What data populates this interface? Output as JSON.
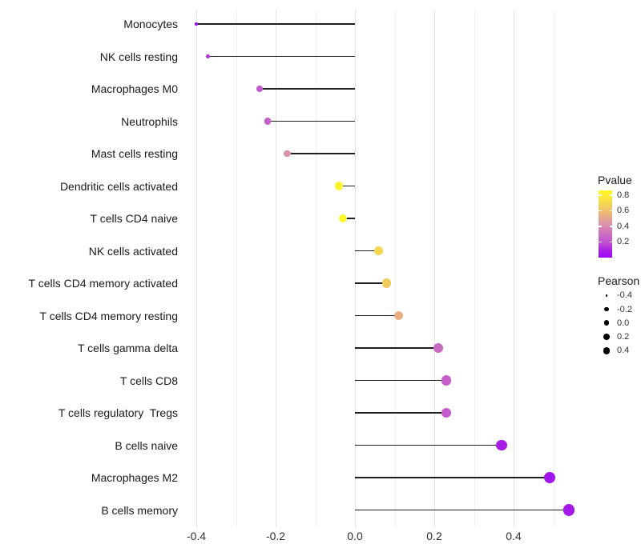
{
  "chart_data": {
    "type": "lollipop",
    "title": "",
    "xlabel": "",
    "ylabel": "",
    "categories": [
      "Monocytes",
      "NK cells resting",
      "Macrophages M0",
      "Neutrophils",
      "Mast cells resting",
      "Dendritic cells activated",
      "T cells CD4 naive",
      "NK cells activated",
      "T cells CD4 memory activated",
      "T cells CD4 memory resting",
      "T cells gamma delta",
      "T cells CD8",
      "T cells regulatory  Tregs",
      "B cells naive",
      "Macrophages M2",
      "B cells memory"
    ],
    "pearson": [
      -0.4,
      -0.37,
      -0.24,
      -0.22,
      -0.17,
      -0.04,
      -0.03,
      0.06,
      0.08,
      0.11,
      0.21,
      0.23,
      0.23,
      0.37,
      0.49,
      0.54
    ],
    "pvalue": [
      0.04,
      0.12,
      0.22,
      0.24,
      0.43,
      0.82,
      0.84,
      0.7,
      0.65,
      0.54,
      0.28,
      0.24,
      0.23,
      0.08,
      0.05,
      0.07
    ],
    "x_ticks": [
      "-0.4",
      "-0.2",
      "0.0",
      "0.2",
      "0.4"
    ],
    "x_tick_values": [
      -0.4,
      -0.2,
      0.0,
      0.2,
      0.4
    ],
    "x_minor_values": [
      -0.3,
      -0.1,
      0.1,
      0.3,
      0.5
    ],
    "xlim": [
      -0.447,
      0.587
    ],
    "grid": "vertical-only",
    "legend": {
      "position": "right",
      "pvalue_title": "Pvalue",
      "pvalue_ticks": [
        "0.8",
        "0.6",
        "0.4",
        "0.2"
      ],
      "pvalue_tick_values": [
        0.8,
        0.6,
        0.4,
        0.2
      ],
      "pvalue_range": [
        0,
        0.86
      ],
      "pearson_title": "Pearson",
      "pearson_ticks": [
        "-0.4",
        "-0.2",
        "0.0",
        "0.2",
        "0.4"
      ],
      "pearson_tick_values": [
        -0.4,
        -0.2,
        0.0,
        0.2,
        0.4
      ]
    },
    "colors": {
      "gradient_stops": [
        [
          0.0,
          "#9A05F7"
        ],
        [
          0.1,
          "#A81EE6"
        ],
        [
          0.23,
          "#C052D2"
        ],
        [
          0.35,
          "#CC6FC0"
        ],
        [
          0.5,
          "#DC92A8"
        ],
        [
          0.63,
          "#EAAF80"
        ],
        [
          0.75,
          "#F2CA5E"
        ],
        [
          0.87,
          "#F9E340"
        ],
        [
          1.0,
          "#FEFA25"
        ]
      ],
      "stem": "#1f1f1f",
      "grid_major": "#e4e4e4",
      "grid_minor": "#f1f1f1",
      "axis_text": "#303030",
      "legend_dot": "#000000",
      "background": "#ffffff"
    }
  }
}
